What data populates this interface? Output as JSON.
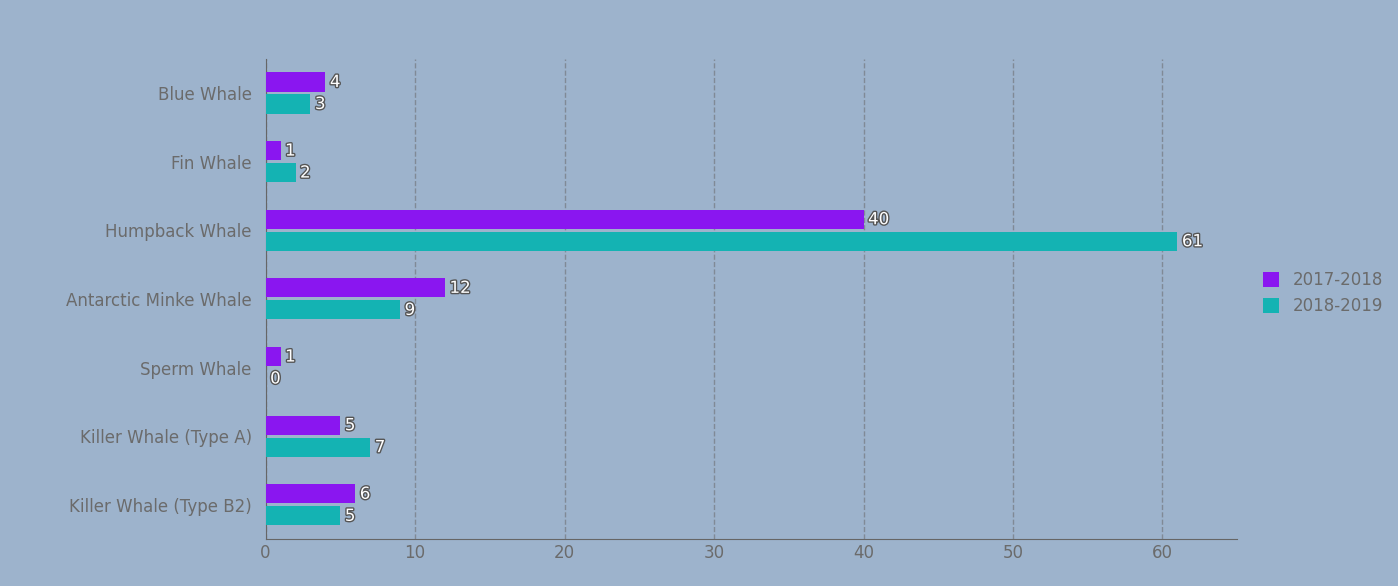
{
  "chart_data": {
    "type": "bar",
    "orientation": "horizontal",
    "categories": [
      "Blue Whale",
      "Fin Whale",
      "Humpback Whale",
      "Antarctic Minke Whale",
      "Sperm Whale",
      "Killer Whale (Type A)",
      "Killer Whale (Type B2)"
    ],
    "series": [
      {
        "name": "2017-2018",
        "color": "#8a16f0",
        "values": [
          4,
          1,
          40,
          12,
          1,
          5,
          6
        ]
      },
      {
        "name": "2018-2019",
        "color": "#14b3b3",
        "values": [
          3,
          2,
          61,
          9,
          0,
          7,
          5
        ]
      }
    ],
    "xlim": [
      0,
      65
    ],
    "xticks": [
      0,
      10,
      20,
      30,
      40,
      50,
      60
    ],
    "grid": true,
    "legend": "center right",
    "data_labels": true
  }
}
